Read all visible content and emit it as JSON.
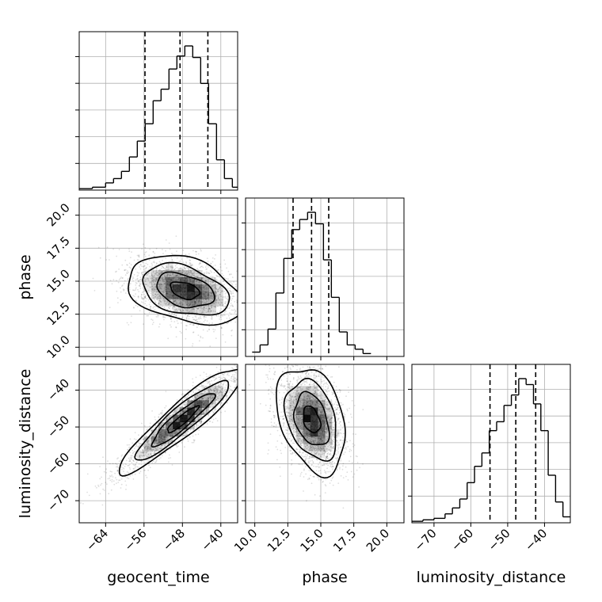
{
  "chart_data": {
    "type": "corner",
    "parameters": [
      "geocent_time",
      "phase",
      "luminosity_distance"
    ],
    "axis_labels": {
      "x": [
        "geocent_time",
        "phase",
        "luminosity_distance"
      ],
      "y": [
        "phase",
        "luminosity_distance"
      ]
    },
    "ranges": {
      "geocent_time": [
        -69.5,
        -36.5
      ],
      "phase": [
        9.3,
        21.3
      ],
      "luminosity_distance": [
        -76.0,
        -33.0
      ]
    },
    "ticks": {
      "geocent_time": [
        -64,
        -56,
        -48,
        -40
      ],
      "phase": [
        10.0,
        12.5,
        15.0,
        17.5,
        20.0
      ],
      "luminosity_distance": [
        -70,
        -60,
        -50,
        -40
      ]
    },
    "tick_labels": {
      "geocent_time": [
        "−64",
        "−56",
        "−48",
        "−40"
      ],
      "phase": [
        "10.0",
        "12.5",
        "15.0",
        "17.5",
        "20.0"
      ],
      "luminosity_distance": [
        "−70",
        "−60",
        "−50",
        "−40"
      ]
    },
    "quantiles": {
      "geocent_time": [
        -55.8,
        -48.5,
        -42.7
      ],
      "phase": [
        12.9,
        14.3,
        15.6
      ],
      "luminosity_distance": [
        -54.8,
        -47.8,
        -42.4
      ]
    },
    "histograms": {
      "geocent_time": {
        "edges": [
          -69.5,
          -66.75,
          -64.0,
          -62.35,
          -60.7,
          -59.05,
          -57.4,
          -55.75,
          -54.1,
          -52.45,
          -50.8,
          -49.15,
          -47.5,
          -45.85,
          -44.2,
          -42.55,
          -40.9,
          -39.25,
          -37.6,
          -36.5
        ],
        "counts": [
          1,
          2,
          5,
          8,
          13,
          23,
          34,
          46,
          62,
          70,
          84,
          93,
          100,
          92,
          74,
          46,
          21,
          8,
          2
        ]
      },
      "phase": {
        "edges": [
          9.8,
          10.4,
          11.0,
          11.6,
          12.2,
          12.8,
          13.4,
          14.0,
          14.6,
          15.2,
          15.8,
          16.4,
          17.0,
          17.6,
          18.2,
          18.8
        ],
        "counts": [
          3,
          8,
          19,
          44,
          68,
          88,
          95,
          100,
          92,
          67,
          41,
          17,
          8,
          5,
          2
        ]
      },
      "luminosity_distance": {
        "edges": [
          -76.0,
          -73.0,
          -70.0,
          -67.0,
          -65.0,
          -63.0,
          -61.0,
          -59.0,
          -57.0,
          -55.0,
          -53.0,
          -51.0,
          -49.0,
          -47.0,
          -45.0,
          -43.0,
          -41.0,
          -39.0,
          -37.0,
          -35.0,
          -33.0
        ],
        "counts": [
          1,
          2,
          3,
          6,
          10,
          16,
          27,
          38,
          47,
          62,
          68,
          79,
          86,
          97,
          93,
          80,
          62,
          32,
          14,
          4
        ]
      }
    },
    "pairs": [
      {
        "x": "geocent_time",
        "y": "phase",
        "mean": [
          -47.5,
          14.3
        ],
        "sd": [
          6.0,
          1.3
        ],
        "corr": -0.35,
        "contour_levels_sigma": [
          0.5,
          1.0,
          1.5,
          2.0
        ]
      },
      {
        "x": "geocent_time",
        "y": "luminosity_distance",
        "mean": [
          -48.0,
          -48.0
        ],
        "sd": [
          6.5,
          7.2
        ],
        "corr": 0.92,
        "contour_levels_sigma": [
          0.5,
          1.0,
          1.5,
          2.0
        ]
      },
      {
        "x": "phase",
        "y": "luminosity_distance",
        "mean": [
          14.3,
          -48.0
        ],
        "sd": [
          1.3,
          7.2
        ],
        "corr": -0.33,
        "contour_levels_sigma": [
          0.5,
          1.0,
          1.5,
          2.0
        ]
      }
    ],
    "grid": true,
    "colors": {
      "line": "#000000",
      "grid": "#b0b0b0",
      "scatter": "#000000",
      "density": "#000000"
    }
  }
}
